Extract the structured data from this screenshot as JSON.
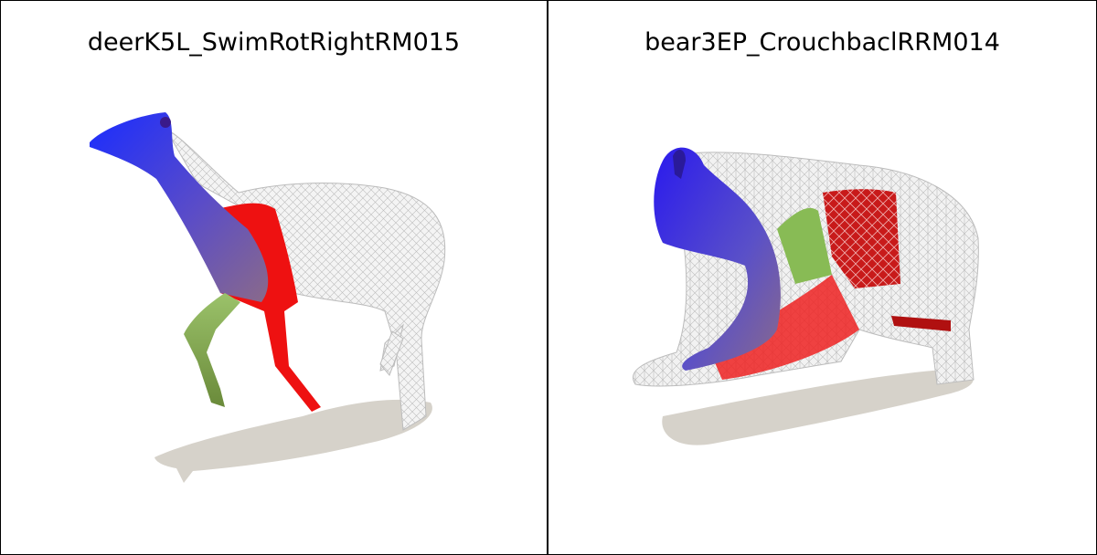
{
  "panels": [
    {
      "title": "deerK5L_SwimRotRightRM015",
      "subject": "deer"
    },
    {
      "title": "bear3EP_CrouchbaclRRM014",
      "subject": "bear"
    }
  ],
  "colors": {
    "mesh": "#d8d8d8",
    "shadow": "#d6d2ca",
    "blue": "#2222dd",
    "red": "#ee1111",
    "green": "#88bb55"
  }
}
